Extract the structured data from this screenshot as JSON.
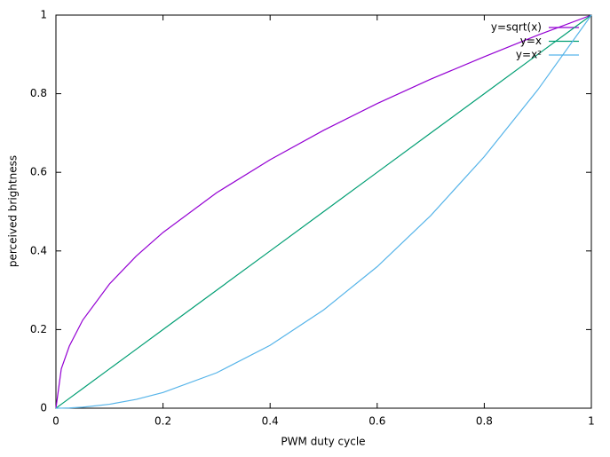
{
  "chart_data": {
    "type": "line",
    "xlabel": "PWM duty cycle",
    "ylabel": "perceived brightness",
    "x": [
      0,
      0.01,
      0.025,
      0.05,
      0.1,
      0.15,
      0.2,
      0.3,
      0.4,
      0.5,
      0.6,
      0.7,
      0.8,
      0.9,
      1
    ],
    "series": [
      {
        "name": "y=sqrt(x)",
        "color": "#9400d3",
        "values": [
          0,
          0.1,
          0.158,
          0.224,
          0.316,
          0.387,
          0.447,
          0.548,
          0.632,
          0.707,
          0.775,
          0.837,
          0.894,
          0.949,
          1
        ]
      },
      {
        "name": "y=x",
        "color": "#009e73",
        "values": [
          0,
          0.01,
          0.025,
          0.05,
          0.1,
          0.15,
          0.2,
          0.3,
          0.4,
          0.5,
          0.6,
          0.7,
          0.8,
          0.9,
          1
        ]
      },
      {
        "name": "y=x²",
        "color": "#56b4e9",
        "values": [
          0,
          0.0001,
          0.000625,
          0.0025,
          0.01,
          0.0225,
          0.04,
          0.09,
          0.16,
          0.25,
          0.36,
          0.49,
          0.64,
          0.81,
          1
        ]
      }
    ],
    "xlim": [
      0,
      1
    ],
    "ylim": [
      0,
      1
    ],
    "xticks": [
      0,
      0.2,
      0.4,
      0.6,
      0.8,
      1
    ],
    "yticks": [
      0,
      0.2,
      0.4,
      0.6,
      0.8,
      1
    ],
    "legend": "top-right"
  }
}
